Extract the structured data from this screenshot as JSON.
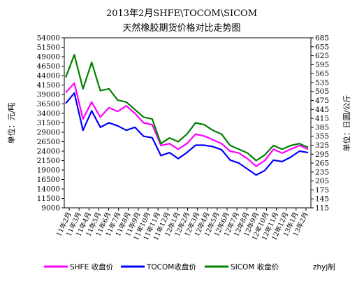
{
  "chart_data": {
    "type": "line",
    "title": "2013年2月SHFE\\TOCOM\\SICOM",
    "subtitle": "天然橡胶期货价格对比走势图",
    "ylabel_left": "单位：元/吨",
    "ylabel_right": "单位：日圆/公斤",
    "y_left_ticks": [
      "54000",
      "51500",
      "49000",
      "46500",
      "44000",
      "41500",
      "39000",
      "36500",
      "34000",
      "31500",
      "29000",
      "26500",
      "24000",
      "21500",
      "19000",
      "16500",
      "14000",
      "11500",
      "9000"
    ],
    "y_right_ticks": [
      "685",
      "655",
      "625",
      "595",
      "565",
      "535",
      "505",
      "475",
      "445",
      "415",
      "385",
      "355",
      "325",
      "295",
      "265",
      "235",
      "205",
      "175",
      "145",
      "115"
    ],
    "y_left_range": [
      9000,
      54000
    ],
    "y_right_range": [
      115,
      685
    ],
    "x_ticks": [
      "11年2月",
      "11年3月",
      "11年4月",
      "11年5月",
      "11年6月",
      "11年7月",
      "11年8月",
      "11年9月",
      "11年10月",
      "11年11月",
      "11年12月",
      "12年1月",
      "12年2月",
      "12年3月",
      "12年4月",
      "12年5月",
      "12年6月",
      "12年7月",
      "12年8月",
      "12年9月",
      "12年10月",
      "12年11月",
      "12年12月",
      "13年1月",
      "13年2月"
    ],
    "series": [
      {
        "name": "SHFE 收盘价",
        "color": "#ff00ff",
        "axis": "left",
        "values": [
          39500,
          42000,
          32500,
          37000,
          33000,
          35500,
          34500,
          36000,
          34000,
          31500,
          31000,
          25500,
          26000,
          24500,
          26000,
          28500,
          28000,
          27000,
          26000,
          24000,
          23500,
          22000,
          20000,
          21500,
          24500,
          23500,
          24500,
          25500,
          24500
        ]
      },
      {
        "name": "TOCOM收盘价",
        "color": "#0000ff",
        "axis": "right",
        "values": [
          465,
          500,
          375,
          440,
          385,
          400,
          390,
          375,
          385,
          355,
          350,
          290,
          300,
          280,
          300,
          325,
          325,
          320,
          310,
          275,
          265,
          245,
          225,
          240,
          275,
          270,
          285,
          305,
          300
        ]
      },
      {
        "name": "SICOM 收盘价",
        "color": "#008000",
        "axis": "left",
        "values": [
          43500,
          49500,
          40500,
          47500,
          40000,
          40500,
          37500,
          37000,
          35000,
          33000,
          32500,
          26000,
          27500,
          26500,
          28500,
          31500,
          31000,
          29500,
          28500,
          25500,
          24500,
          23500,
          21500,
          23000,
          25500,
          24500,
          25500,
          26000,
          25000
        ]
      }
    ],
    "legend_position": "bottom",
    "watermark": "zhyj制",
    "grid": false
  }
}
